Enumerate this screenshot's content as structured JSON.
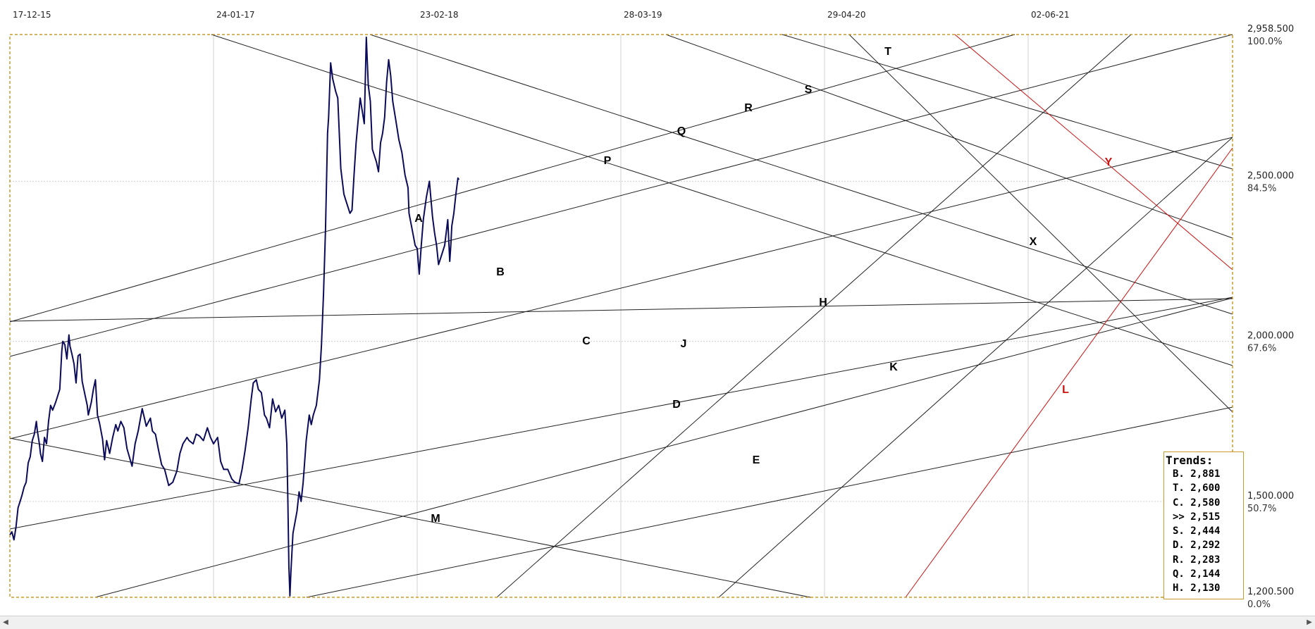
{
  "chart_data": {
    "type": "line",
    "date_labels": [
      "17-12-15",
      "24-01-17",
      "23-02-18",
      "28-03-19",
      "29-04-20",
      "02-06-21"
    ],
    "ylim": [
      1200.5,
      2958.5
    ],
    "y_labels": [
      {
        "value": 2958.5,
        "label": "2,958.500",
        "pct": "100.0%"
      },
      {
        "value": 2500,
        "label": "2,500.000",
        "pct": "84.5%"
      },
      {
        "value": 2000,
        "label": "2,000.000",
        "pct": "67.6%"
      },
      {
        "value": 1500,
        "label": "1,500.000",
        "pct": "50.7%"
      },
      {
        "value": 1200.5,
        "label": "1,200.500",
        "pct": "0.0%"
      }
    ],
    "series": [
      {
        "color": "#0b0b5a",
        "points": [
          [
            0.0,
            1395
          ],
          [
            0.01,
            1405
          ],
          [
            0.02,
            1380
          ],
          [
            0.03,
            1420
          ],
          [
            0.04,
            1480
          ],
          [
            0.05,
            1500
          ],
          [
            0.06,
            1520
          ],
          [
            0.07,
            1545
          ],
          [
            0.08,
            1560
          ],
          [
            0.09,
            1620
          ],
          [
            0.1,
            1640
          ],
          [
            0.11,
            1690
          ],
          [
            0.12,
            1710
          ],
          [
            0.13,
            1750
          ],
          [
            0.135,
            1720
          ],
          [
            0.145,
            1680
          ],
          [
            0.15,
            1650
          ],
          [
            0.16,
            1625
          ],
          [
            0.17,
            1700
          ],
          [
            0.18,
            1680
          ],
          [
            0.19,
            1750
          ],
          [
            0.2,
            1800
          ],
          [
            0.21,
            1785
          ],
          [
            0.225,
            1810
          ],
          [
            0.235,
            1830
          ],
          [
            0.245,
            1850
          ],
          [
            0.255,
            1970
          ],
          [
            0.26,
            2000
          ],
          [
            0.27,
            1990
          ],
          [
            0.28,
            1945
          ],
          [
            0.29,
            2020
          ],
          [
            0.295,
            1985
          ],
          [
            0.305,
            1960
          ],
          [
            0.315,
            1930
          ],
          [
            0.325,
            1870
          ],
          [
            0.335,
            1955
          ],
          [
            0.345,
            1960
          ],
          [
            0.355,
            1875
          ],
          [
            0.37,
            1830
          ],
          [
            0.38,
            1800
          ],
          [
            0.385,
            1770
          ],
          [
            0.4,
            1810
          ],
          [
            0.41,
            1850
          ],
          [
            0.42,
            1880
          ],
          [
            0.43,
            1770
          ],
          [
            0.44,
            1745
          ],
          [
            0.455,
            1695
          ],
          [
            0.465,
            1630
          ],
          [
            0.475,
            1690
          ],
          [
            0.49,
            1650
          ],
          [
            0.505,
            1700
          ],
          [
            0.52,
            1740
          ],
          [
            0.53,
            1720
          ],
          [
            0.545,
            1750
          ],
          [
            0.56,
            1730
          ],
          [
            0.575,
            1665
          ],
          [
            0.6,
            1610
          ],
          [
            0.615,
            1680
          ],
          [
            0.63,
            1720
          ],
          [
            0.65,
            1790
          ],
          [
            0.67,
            1735
          ],
          [
            0.69,
            1760
          ],
          [
            0.7,
            1720
          ],
          [
            0.715,
            1710
          ],
          [
            0.73,
            1660
          ],
          [
            0.745,
            1615
          ],
          [
            0.76,
            1600
          ],
          [
            0.78,
            1550
          ],
          [
            0.8,
            1560
          ],
          [
            0.82,
            1595
          ],
          [
            0.835,
            1650
          ],
          [
            0.85,
            1680
          ],
          [
            0.87,
            1700
          ],
          [
            0.88,
            1690
          ],
          [
            0.9,
            1680
          ],
          [
            0.915,
            1710
          ],
          [
            0.93,
            1705
          ],
          [
            0.95,
            1690
          ],
          [
            0.97,
            1730
          ],
          [
            0.985,
            1700
          ],
          [
            1.0,
            1680
          ],
          [
            1.02,
            1700
          ],
          [
            1.035,
            1625
          ],
          [
            1.05,
            1600
          ],
          [
            1.07,
            1600
          ],
          [
            1.09,
            1570
          ],
          [
            1.105,
            1560
          ],
          [
            1.125,
            1555
          ],
          [
            1.14,
            1600
          ],
          [
            1.155,
            1660
          ],
          [
            1.17,
            1730
          ],
          [
            1.185,
            1820
          ],
          [
            1.195,
            1870
          ],
          [
            1.21,
            1880
          ],
          [
            1.22,
            1850
          ],
          [
            1.235,
            1840
          ],
          [
            1.25,
            1770
          ],
          [
            1.26,
            1760
          ],
          [
            1.275,
            1730
          ],
          [
            1.29,
            1820
          ],
          [
            1.305,
            1780
          ],
          [
            1.32,
            1800
          ],
          [
            1.335,
            1760
          ],
          [
            1.35,
            1785
          ],
          [
            1.36,
            1680
          ],
          [
            1.365,
            1500
          ],
          [
            1.37,
            1300
          ],
          [
            1.375,
            1205
          ],
          [
            1.38,
            1280
          ],
          [
            1.39,
            1400
          ],
          [
            1.41,
            1470
          ],
          [
            1.42,
            1530
          ],
          [
            1.43,
            1500
          ],
          [
            1.44,
            1560
          ],
          [
            1.455,
            1690
          ],
          [
            1.47,
            1770
          ],
          [
            1.48,
            1740
          ],
          [
            1.49,
            1770
          ],
          [
            1.505,
            1800
          ],
          [
            1.52,
            1880
          ],
          [
            1.53,
            1990
          ],
          [
            1.54,
            2150
          ],
          [
            1.55,
            2350
          ],
          [
            1.56,
            2650
          ],
          [
            1.565,
            2700
          ],
          [
            1.575,
            2870
          ],
          [
            1.585,
            2820
          ],
          [
            1.6,
            2780
          ],
          [
            1.61,
            2760
          ],
          [
            1.625,
            2540
          ],
          [
            1.64,
            2460
          ],
          [
            1.65,
            2440
          ],
          [
            1.66,
            2420
          ],
          [
            1.67,
            2400
          ],
          [
            1.68,
            2410
          ],
          [
            1.69,
            2520
          ],
          [
            1.7,
            2620
          ],
          [
            1.72,
            2760
          ],
          [
            1.74,
            2680
          ],
          [
            1.75,
            2950
          ],
          [
            1.76,
            2800
          ],
          [
            1.77,
            2750
          ],
          [
            1.78,
            2600
          ],
          [
            1.79,
            2580
          ],
          [
            1.8,
            2560
          ],
          [
            1.81,
            2530
          ],
          [
            1.82,
            2620
          ],
          [
            1.83,
            2650
          ],
          [
            1.84,
            2700
          ],
          [
            1.85,
            2810
          ],
          [
            1.86,
            2880
          ],
          [
            1.87,
            2830
          ],
          [
            1.88,
            2750
          ],
          [
            1.895,
            2690
          ],
          [
            1.91,
            2630
          ],
          [
            1.925,
            2590
          ],
          [
            1.94,
            2520
          ],
          [
            1.955,
            2480
          ],
          [
            1.96,
            2400
          ],
          [
            1.975,
            2350
          ],
          [
            1.99,
            2300
          ],
          [
            2.0,
            2290
          ],
          [
            2.01,
            2210
          ],
          [
            2.02,
            2300
          ],
          [
            2.03,
            2380
          ],
          [
            2.045,
            2450
          ],
          [
            2.06,
            2500
          ],
          [
            2.075,
            2390
          ],
          [
            2.085,
            2340
          ],
          [
            2.095,
            2300
          ],
          [
            2.105,
            2240
          ],
          [
            2.12,
            2270
          ],
          [
            2.135,
            2300
          ],
          [
            2.15,
            2380
          ],
          [
            2.16,
            2250
          ],
          [
            2.165,
            2300
          ],
          [
            2.17,
            2360
          ],
          [
            2.18,
            2400
          ],
          [
            2.19,
            2460
          ],
          [
            2.2,
            2510
          ],
          [
            2.205,
            2505
          ]
        ]
      }
    ],
    "line_letters": [
      {
        "text": "A",
        "color": "#000000"
      },
      {
        "text": "B",
        "color": "#000000"
      },
      {
        "text": "C",
        "color": "#000000"
      },
      {
        "text": "D",
        "color": "#000000"
      },
      {
        "text": "E",
        "color": "#000000"
      },
      {
        "text": "H",
        "color": "#000000"
      },
      {
        "text": "J",
        "color": "#000000"
      },
      {
        "text": "K",
        "color": "#000000"
      },
      {
        "text": "M",
        "color": "#000000"
      },
      {
        "text": "P",
        "color": "#000000"
      },
      {
        "text": "Q",
        "color": "#000000"
      },
      {
        "text": "R",
        "color": "#000000"
      },
      {
        "text": "S",
        "color": "#000000"
      },
      {
        "text": "T",
        "color": "#000000"
      },
      {
        "text": "X",
        "color": "#000000"
      },
      {
        "text": "Y",
        "color": "#cc1111"
      },
      {
        "text": "L",
        "color": "#cc1111"
      }
    ],
    "trends_title": "Trends:",
    "trends": [
      {
        "key": "B.",
        "value": "2,881"
      },
      {
        "key": "T.",
        "value": "2,600"
      },
      {
        "key": "C.",
        "value": "2,580"
      },
      {
        "key": ">>",
        "value": "2,515"
      },
      {
        "key": "S.",
        "value": "2,444"
      },
      {
        "key": "D.",
        "value": "2,292"
      },
      {
        "key": "R.",
        "value": "2,283"
      },
      {
        "key": "Q.",
        "value": "2,144"
      },
      {
        "key": "H.",
        "value": "2,130"
      }
    ],
    "colors": {
      "price": "#0b0b5a",
      "frame": "#c89b2c",
      "trendline": "#222222",
      "red_trendline": "#cc1111",
      "grid": "#d0d0d0"
    },
    "grid": true
  },
  "scrollbar": {
    "left_arrow_icon": "arrow-left-icon",
    "right_arrow_icon": "arrow-right-icon"
  }
}
